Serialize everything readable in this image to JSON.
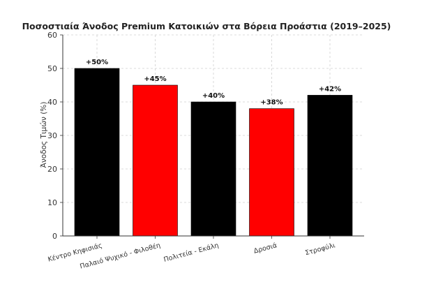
{
  "chart_data": {
    "type": "bar",
    "title": "Ποσοστιαία Άνοδος Premium Κατοικιών στα Βόρεια Προάστια (2019–2025)",
    "xlabel": "",
    "ylabel": "Άνοδος Τιμών (%)",
    "categories": [
      "Κέντρο Κηφισιάς",
      "Παλαιό Ψυχικό - Φιλοθέη",
      "Πολιτεία - Εκάλη",
      "Δροσιά",
      "Στροφύλι"
    ],
    "values": [
      50,
      45,
      40,
      38,
      42
    ],
    "data_labels": [
      "+50%",
      "+45%",
      "+40%",
      "+38%",
      "+42%"
    ],
    "colors": [
      "#000000",
      "#ff0000",
      "#000000",
      "#ff0000",
      "#000000"
    ],
    "ylim": [
      0,
      60
    ],
    "yticks": [
      0,
      10,
      20,
      30,
      40,
      50,
      60
    ],
    "grid": true,
    "legend": "none"
  }
}
